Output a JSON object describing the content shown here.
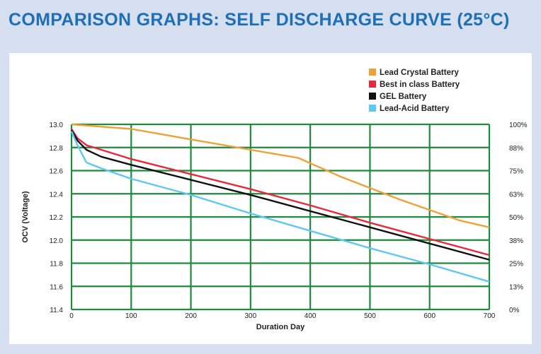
{
  "page": {
    "title": "COMPARISON GRAPHS: SELF DISCHARGE CURVE (25°C)",
    "title_color": "#1e6fb6",
    "grid_color": "#1e8a3c"
  },
  "chart_data": {
    "type": "line",
    "title": "COMPARISON GRAPHS: SELF DISCHARGE CURVE (25°C)",
    "xlabel": "Duration Day",
    "ylabel": "OCV (Voltage)",
    "xlim": [
      0,
      700
    ],
    "ylim": [
      11.4,
      13.0
    ],
    "x_ticks": [
      0,
      100,
      200,
      300,
      400,
      500,
      600,
      700
    ],
    "y_ticks": [
      "11.4",
      "11.6",
      "11.8",
      "12.0",
      "12.2",
      "12.4",
      "12.6",
      "12.8",
      "13.0"
    ],
    "y2_ticks": [
      "0%",
      "13%",
      "25%",
      "38%",
      "50%",
      "63%",
      "75%",
      "88%",
      "100%"
    ],
    "grid": true,
    "legend_position": "top-right",
    "series": [
      {
        "name": "Lead Crystal Battery",
        "color": "#f0a038",
        "points": [
          [
            0,
            13.0
          ],
          [
            50,
            12.98
          ],
          [
            100,
            12.96
          ],
          [
            200,
            12.87
          ],
          [
            300,
            12.78
          ],
          [
            380,
            12.71
          ],
          [
            450,
            12.55
          ],
          [
            550,
            12.35
          ],
          [
            650,
            12.17
          ],
          [
            700,
            12.11
          ]
        ]
      },
      {
        "name": "Best in class Battery",
        "color": "#e8283c",
        "points": [
          [
            0,
            12.96
          ],
          [
            10,
            12.88
          ],
          [
            25,
            12.82
          ],
          [
            50,
            12.78
          ],
          [
            100,
            12.7
          ],
          [
            200,
            12.57
          ],
          [
            300,
            12.44
          ],
          [
            400,
            12.3
          ],
          [
            500,
            12.15
          ],
          [
            600,
            12.01
          ],
          [
            700,
            11.87
          ]
        ]
      },
      {
        "name": "GEL Battery",
        "color": "#111111",
        "points": [
          [
            0,
            12.95
          ],
          [
            10,
            12.86
          ],
          [
            25,
            12.78
          ],
          [
            50,
            12.72
          ],
          [
            100,
            12.65
          ],
          [
            200,
            12.52
          ],
          [
            300,
            12.39
          ],
          [
            400,
            12.25
          ],
          [
            500,
            12.11
          ],
          [
            600,
            11.97
          ],
          [
            700,
            11.83
          ]
        ]
      },
      {
        "name": "Lead-Acid Battery",
        "color": "#5ec8f0",
        "points": [
          [
            0,
            12.94
          ],
          [
            10,
            12.82
          ],
          [
            25,
            12.67
          ],
          [
            50,
            12.62
          ],
          [
            100,
            12.53
          ],
          [
            200,
            12.39
          ],
          [
            300,
            12.23
          ],
          [
            400,
            12.08
          ],
          [
            500,
            11.93
          ],
          [
            600,
            11.79
          ],
          [
            700,
            11.64
          ]
        ]
      }
    ]
  }
}
